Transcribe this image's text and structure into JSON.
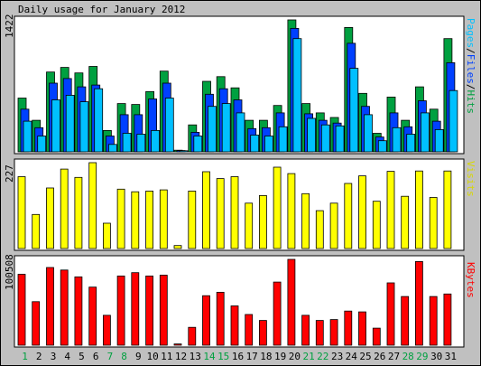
{
  "title": "Daily usage for January 2012",
  "colors": {
    "background": "#c0c0c0",
    "panel": "#ffffff",
    "hits": "#00a040",
    "files": "#0040ff",
    "pages": "#00c0ff",
    "visits": "#ffff00",
    "kbytes": "#ff0000",
    "weekend_label": "#00a040",
    "weekday_label": "#000000"
  },
  "chart_data": [
    {
      "type": "bar",
      "title": "Daily usage for January 2012",
      "categories": [
        "1",
        "2",
        "3",
        "4",
        "5",
        "6",
        "7",
        "8",
        "9",
        "10",
        "11",
        "12",
        "13",
        "14",
        "15",
        "16",
        "17",
        "18",
        "19",
        "20",
        "21",
        "22",
        "23",
        "24",
        "25",
        "26",
        "27",
        "28",
        "29",
        "30",
        "31"
      ],
      "weekend_days": [
        "1",
        "7",
        "8",
        "14",
        "15",
        "21",
        "22",
        "28",
        "29"
      ],
      "ylabel_right": [
        "Pages",
        "Files",
        "Hits"
      ],
      "ymax_label": "1422",
      "ylim": [
        0,
        1422
      ],
      "series": [
        {
          "name": "Hits",
          "values": [
            580,
            340,
            860,
            910,
            850,
            920,
            230,
            520,
            510,
            650,
            870,
            18,
            290,
            760,
            810,
            690,
            340,
            340,
            500,
            1422,
            520,
            420,
            370,
            1340,
            630,
            200,
            590,
            340,
            700,
            460,
            1220
          ]
        },
        {
          "name": "Files",
          "values": [
            460,
            260,
            740,
            790,
            700,
            720,
            170,
            400,
            400,
            570,
            740,
            14,
            210,
            620,
            680,
            560,
            250,
            260,
            420,
            1330,
            410,
            340,
            310,
            1170,
            490,
            160,
            420,
            270,
            550,
            330,
            960
          ]
        },
        {
          "name": "Pages",
          "values": [
            330,
            170,
            560,
            610,
            540,
            680,
            80,
            200,
            190,
            230,
            580,
            12,
            170,
            490,
            520,
            420,
            180,
            170,
            270,
            1220,
            360,
            290,
            280,
            900,
            400,
            120,
            260,
            190,
            420,
            240,
            660
          ]
        }
      ]
    },
    {
      "type": "bar",
      "categories": [
        "1",
        "2",
        "3",
        "4",
        "5",
        "6",
        "7",
        "8",
        "9",
        "10",
        "11",
        "12",
        "13",
        "14",
        "15",
        "16",
        "17",
        "18",
        "19",
        "20",
        "21",
        "22",
        "23",
        "24",
        "25",
        "26",
        "27",
        "28",
        "29",
        "30",
        "31"
      ],
      "ylabel_right": [
        "Visits"
      ],
      "ymax_label": "227",
      "ylim": [
        0,
        227
      ],
      "series": [
        {
          "name": "Visits",
          "values": [
            190,
            90,
            160,
            210,
            188,
            227,
            67,
            157,
            150,
            152,
            155,
            8,
            152,
            203,
            185,
            190,
            120,
            140,
            215,
            198,
            145,
            100,
            120,
            172,
            192,
            125,
            204,
            138,
            205,
            135,
            205
          ]
        }
      ]
    },
    {
      "type": "bar",
      "categories": [
        "1",
        "2",
        "3",
        "4",
        "5",
        "6",
        "7",
        "8",
        "9",
        "10",
        "11",
        "12",
        "13",
        "14",
        "15",
        "16",
        "17",
        "18",
        "19",
        "20",
        "21",
        "22",
        "23",
        "24",
        "25",
        "26",
        "27",
        "28",
        "29",
        "30",
        "31"
      ],
      "ylabel_right": [
        "KBytes"
      ],
      "ymax_label": "100508",
      "ylim": [
        0,
        100508
      ],
      "series": [
        {
          "name": "KBytes",
          "values": [
            83000,
            51000,
            91000,
            88000,
            80000,
            68000,
            35000,
            81000,
            85000,
            81000,
            82000,
            1500,
            21000,
            58000,
            62000,
            46000,
            36000,
            29000,
            74000,
            100508,
            35000,
            29000,
            30000,
            40000,
            39000,
            20000,
            73000,
            57000,
            98000,
            57000,
            60000
          ]
        }
      ]
    }
  ]
}
